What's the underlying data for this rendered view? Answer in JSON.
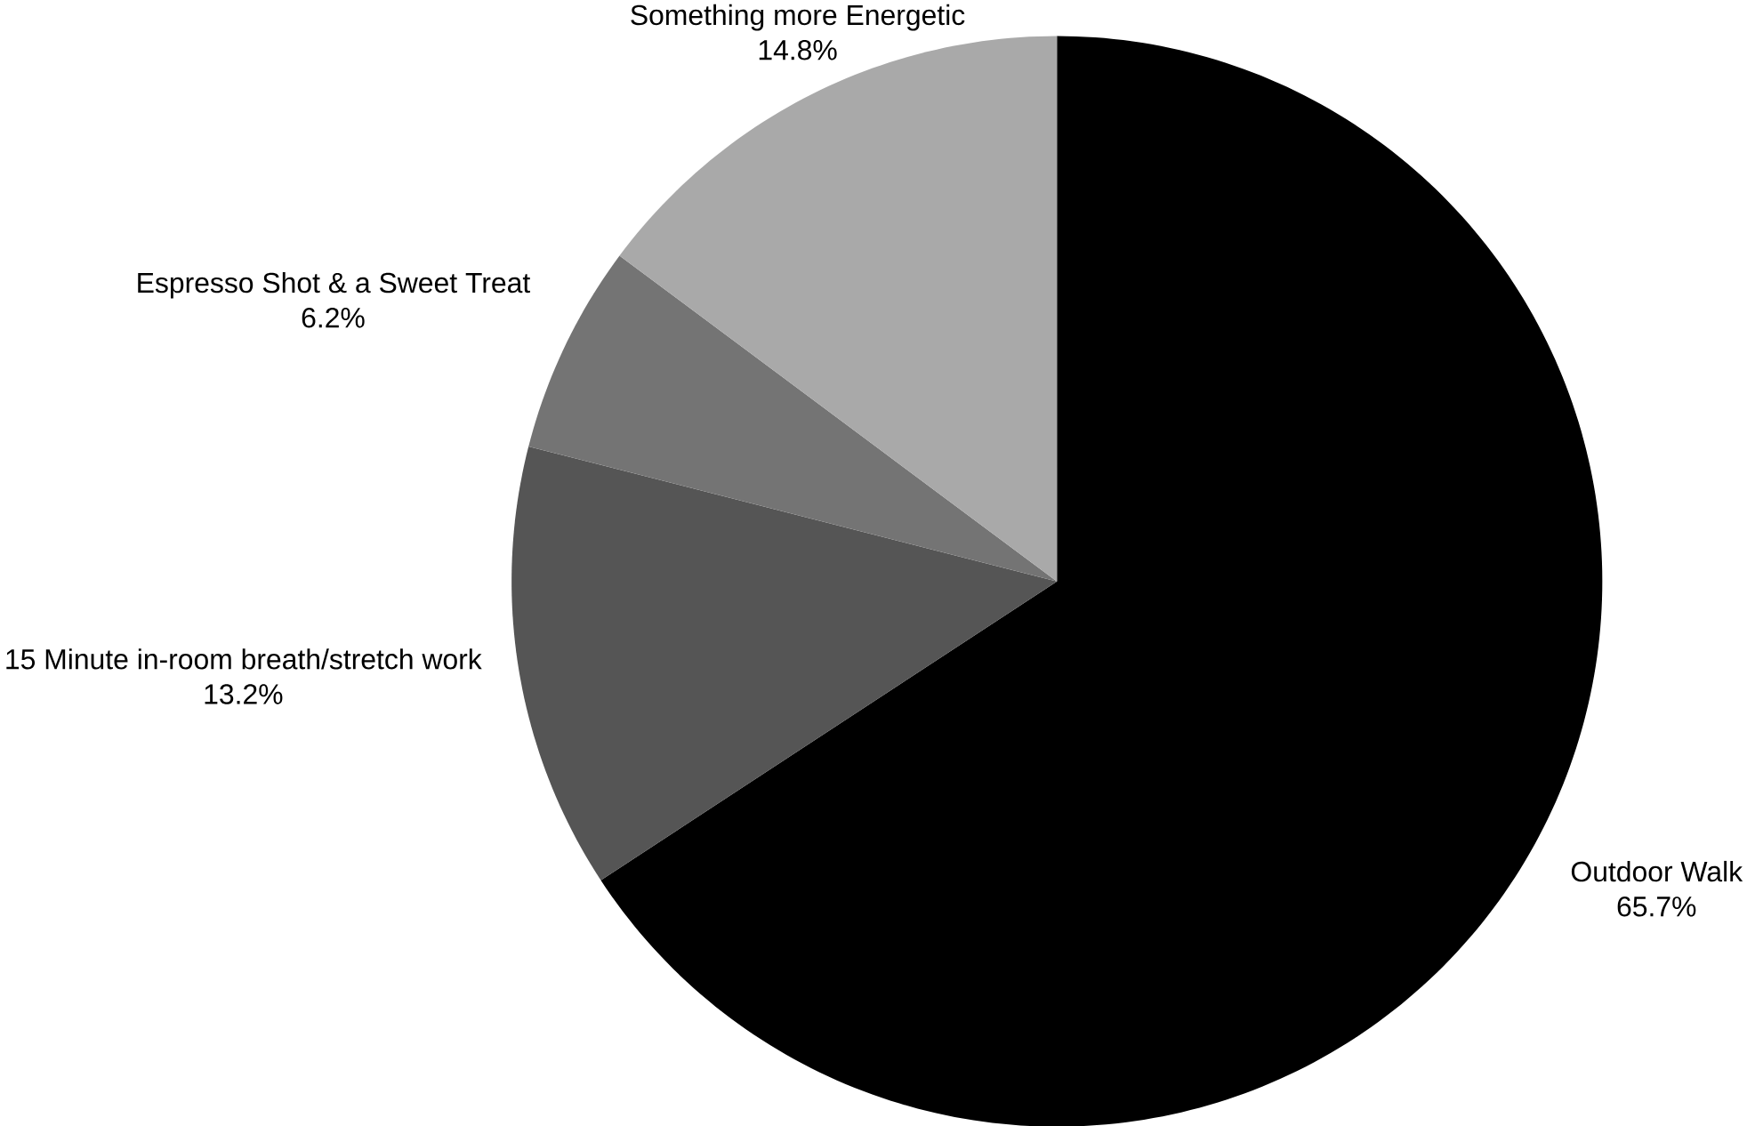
{
  "chart_data": {
    "type": "pie",
    "categories": [
      "Outdoor Walk",
      "15 Minute in-room breath/stretch work",
      "Espresso Shot & a Sweet Treat",
      "Something more Energetic"
    ],
    "values": [
      65.7,
      13.2,
      6.2,
      14.8
    ],
    "value_labels": [
      "65.7%",
      "13.2%",
      "6.2%",
      "14.8%"
    ],
    "colors": [
      "#000000",
      "#555555",
      "#747474",
      "#a9a9a9"
    ]
  }
}
